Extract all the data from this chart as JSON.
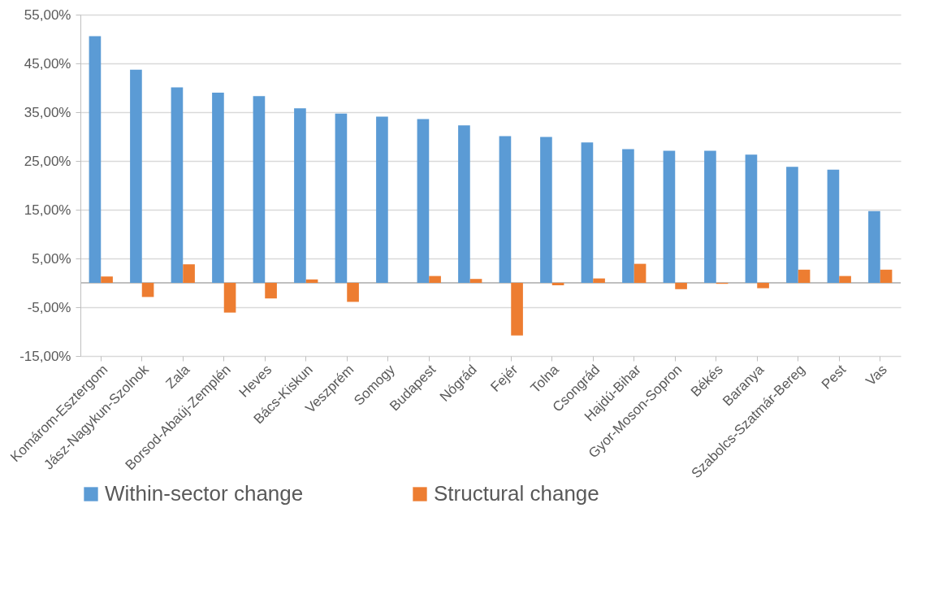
{
  "chart_data": {
    "type": "bar",
    "categories": [
      "Komárom-Esztergom",
      "Jász-Nagykun-Szolnok",
      "Zala",
      "Borsod-Abaúj-Zemplén",
      "Heves",
      "Bács-Kiskun",
      "Veszprém",
      "Somogy",
      "Budapest",
      "Nógrád",
      "Fejér",
      "Tolna",
      "Csongrád",
      "Hajdú-Bihar",
      "Gyor-Moson-Sopron",
      "Békés",
      "Baranya",
      "Szabolcs-Szatmár-Bereg",
      "Pest",
      "Vas"
    ],
    "series": [
      {
        "name": "Within-sector change",
        "color": "#5b9bd5",
        "values": [
          50.6,
          43.7,
          40.1,
          39.0,
          38.3,
          35.8,
          34.7,
          34.1,
          33.6,
          32.3,
          30.1,
          29.9,
          28.8,
          27.4,
          27.1,
          27.1,
          26.3,
          23.8,
          23.2,
          14.7
        ]
      },
      {
        "name": "Structural change",
        "color": "#ed7d31",
        "values": [
          1.3,
          -2.9,
          3.8,
          -6.1,
          -3.2,
          0.7,
          -3.9,
          0,
          1.4,
          0.8,
          -10.8,
          -0.5,
          0.9,
          3.9,
          -1.3,
          -0.2,
          -1.1,
          2.7,
          1.4,
          2.7
        ]
      }
    ],
    "ylim": [
      -15,
      55
    ],
    "yticks": [
      {
        "value": -15,
        "label": "-15,00%"
      },
      {
        "value": -5,
        "label": "-5,00%"
      },
      {
        "value": 5,
        "label": "5,00%"
      },
      {
        "value": 15,
        "label": "15,00%"
      },
      {
        "value": 25,
        "label": "25,00%"
      },
      {
        "value": 35,
        "label": "35,00%"
      },
      {
        "value": 45,
        "label": "45,00%"
      },
      {
        "value": 55,
        "label": "55,00%"
      }
    ],
    "grid": "y",
    "legend": "bottom"
  }
}
